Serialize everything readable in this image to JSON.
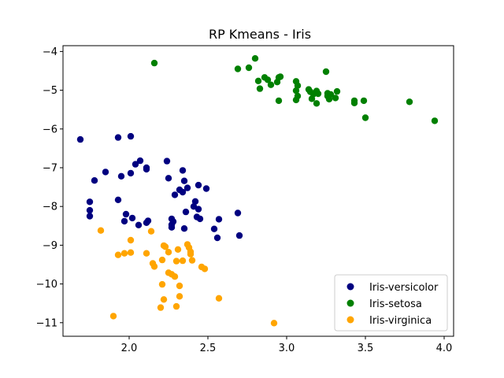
{
  "chart_data": {
    "type": "scatter",
    "title": "RP Kmeans - Iris",
    "xlabel": "",
    "ylabel": "",
    "xlim": [
      1.58,
      4.06
    ],
    "ylim": [
      -11.35,
      -3.85
    ],
    "xticks": [
      2.0,
      2.5,
      3.0,
      3.5,
      4.0
    ],
    "xtick_labels": [
      "2.0",
      "2.5",
      "3.0",
      "3.5",
      "4.0"
    ],
    "yticks": [
      -4,
      -5,
      -6,
      -7,
      -8,
      -9,
      -10,
      -11
    ],
    "ytick_labels": [
      "−4",
      "−5",
      "−6",
      "−7",
      "−8",
      "−9",
      "−10",
      "−11"
    ],
    "grid": false,
    "legend": "lower-right",
    "series": [
      {
        "name": "Iris-versicolor",
        "color": "#000080",
        "x": [
          1.69,
          1.93,
          2.01,
          1.75,
          1.78,
          1.85,
          1.95,
          2.01,
          2.04,
          2.07,
          2.11,
          2.11,
          2.24,
          2.34,
          2.25,
          2.35,
          2.32,
          2.37,
          2.29,
          2.34,
          2.44,
          2.49,
          2.42,
          1.75,
          1.75,
          1.93,
          1.98,
          2.02,
          1.97,
          2.06,
          2.12,
          2.11,
          2.27,
          2.28,
          2.27,
          2.27,
          2.36,
          2.41,
          2.44,
          2.43,
          2.45,
          2.35,
          2.57,
          2.54,
          2.56,
          2.69,
          2.7
        ],
        "y": [
          -6.27,
          -6.22,
          -6.19,
          -7.88,
          -7.33,
          -7.11,
          -7.22,
          -7.14,
          -6.91,
          -6.82,
          -7.0,
          -7.04,
          -6.83,
          -7.07,
          -7.27,
          -7.34,
          -7.57,
          -7.52,
          -7.7,
          -7.63,
          -7.45,
          -7.54,
          -7.87,
          -8.1,
          -8.25,
          -7.83,
          -8.2,
          -8.3,
          -8.38,
          -8.48,
          -8.37,
          -8.42,
          -8.32,
          -8.39,
          -8.47,
          -8.54,
          -8.14,
          -8.0,
          -8.07,
          -8.27,
          -8.32,
          -8.57,
          -8.33,
          -8.58,
          -8.81,
          -8.17,
          -8.75
        ]
      },
      {
        "name": "Iris-setosa",
        "color": "#008000",
        "x": [
          2.16,
          2.8,
          2.69,
          2.76,
          2.82,
          2.86,
          2.88,
          2.9,
          2.83,
          2.94,
          2.95,
          2.96,
          2.95,
          3.06,
          3.07,
          3.06,
          3.07,
          3.06,
          3.14,
          3.15,
          3.17,
          3.19,
          3.2,
          3.16,
          3.25,
          3.26,
          3.28,
          3.31,
          3.27,
          3.32,
          3.19,
          3.26,
          3.43,
          3.43,
          3.49,
          3.5,
          3.78,
          3.94
        ],
        "y": [
          -4.3,
          -4.18,
          -4.45,
          -4.42,
          -4.76,
          -4.67,
          -4.73,
          -4.86,
          -4.96,
          -4.79,
          -4.67,
          -4.65,
          -5.27,
          -4.77,
          -4.88,
          -5.01,
          -5.15,
          -5.25,
          -4.98,
          -5.04,
          -5.1,
          -5.02,
          -5.09,
          -5.22,
          -4.52,
          -5.08,
          -5.11,
          -5.2,
          -5.23,
          -5.03,
          -5.34,
          -5.15,
          -5.27,
          -5.33,
          -5.27,
          -5.71,
          -5.3,
          -5.79
        ]
      },
      {
        "name": "Iris-virginica",
        "color": "#ffa500",
        "x": [
          1.82,
          1.93,
          1.97,
          2.01,
          2.01,
          2.11,
          2.14,
          2.15,
          2.16,
          2.21,
          2.22,
          2.23,
          2.25,
          2.25,
          2.27,
          2.29,
          2.3,
          2.31,
          2.32,
          2.34,
          2.37,
          2.38,
          2.39,
          2.39,
          2.4,
          2.46,
          2.48,
          2.21,
          2.22,
          2.2,
          2.3,
          2.32,
          1.9,
          2.57,
          2.92
        ],
        "y": [
          -8.62,
          -9.25,
          -9.21,
          -8.87,
          -9.19,
          -9.21,
          -8.64,
          -9.47,
          -9.55,
          -9.38,
          -9.01,
          -9.04,
          -9.18,
          -9.71,
          -9.75,
          -9.81,
          -9.41,
          -9.11,
          -10.05,
          -9.4,
          -8.98,
          -9.06,
          -9.17,
          -9.23,
          -9.39,
          -9.56,
          -9.61,
          -10.01,
          -10.4,
          -10.61,
          -10.58,
          -10.32,
          -10.83,
          -10.37,
          -11.01
        ]
      }
    ]
  }
}
